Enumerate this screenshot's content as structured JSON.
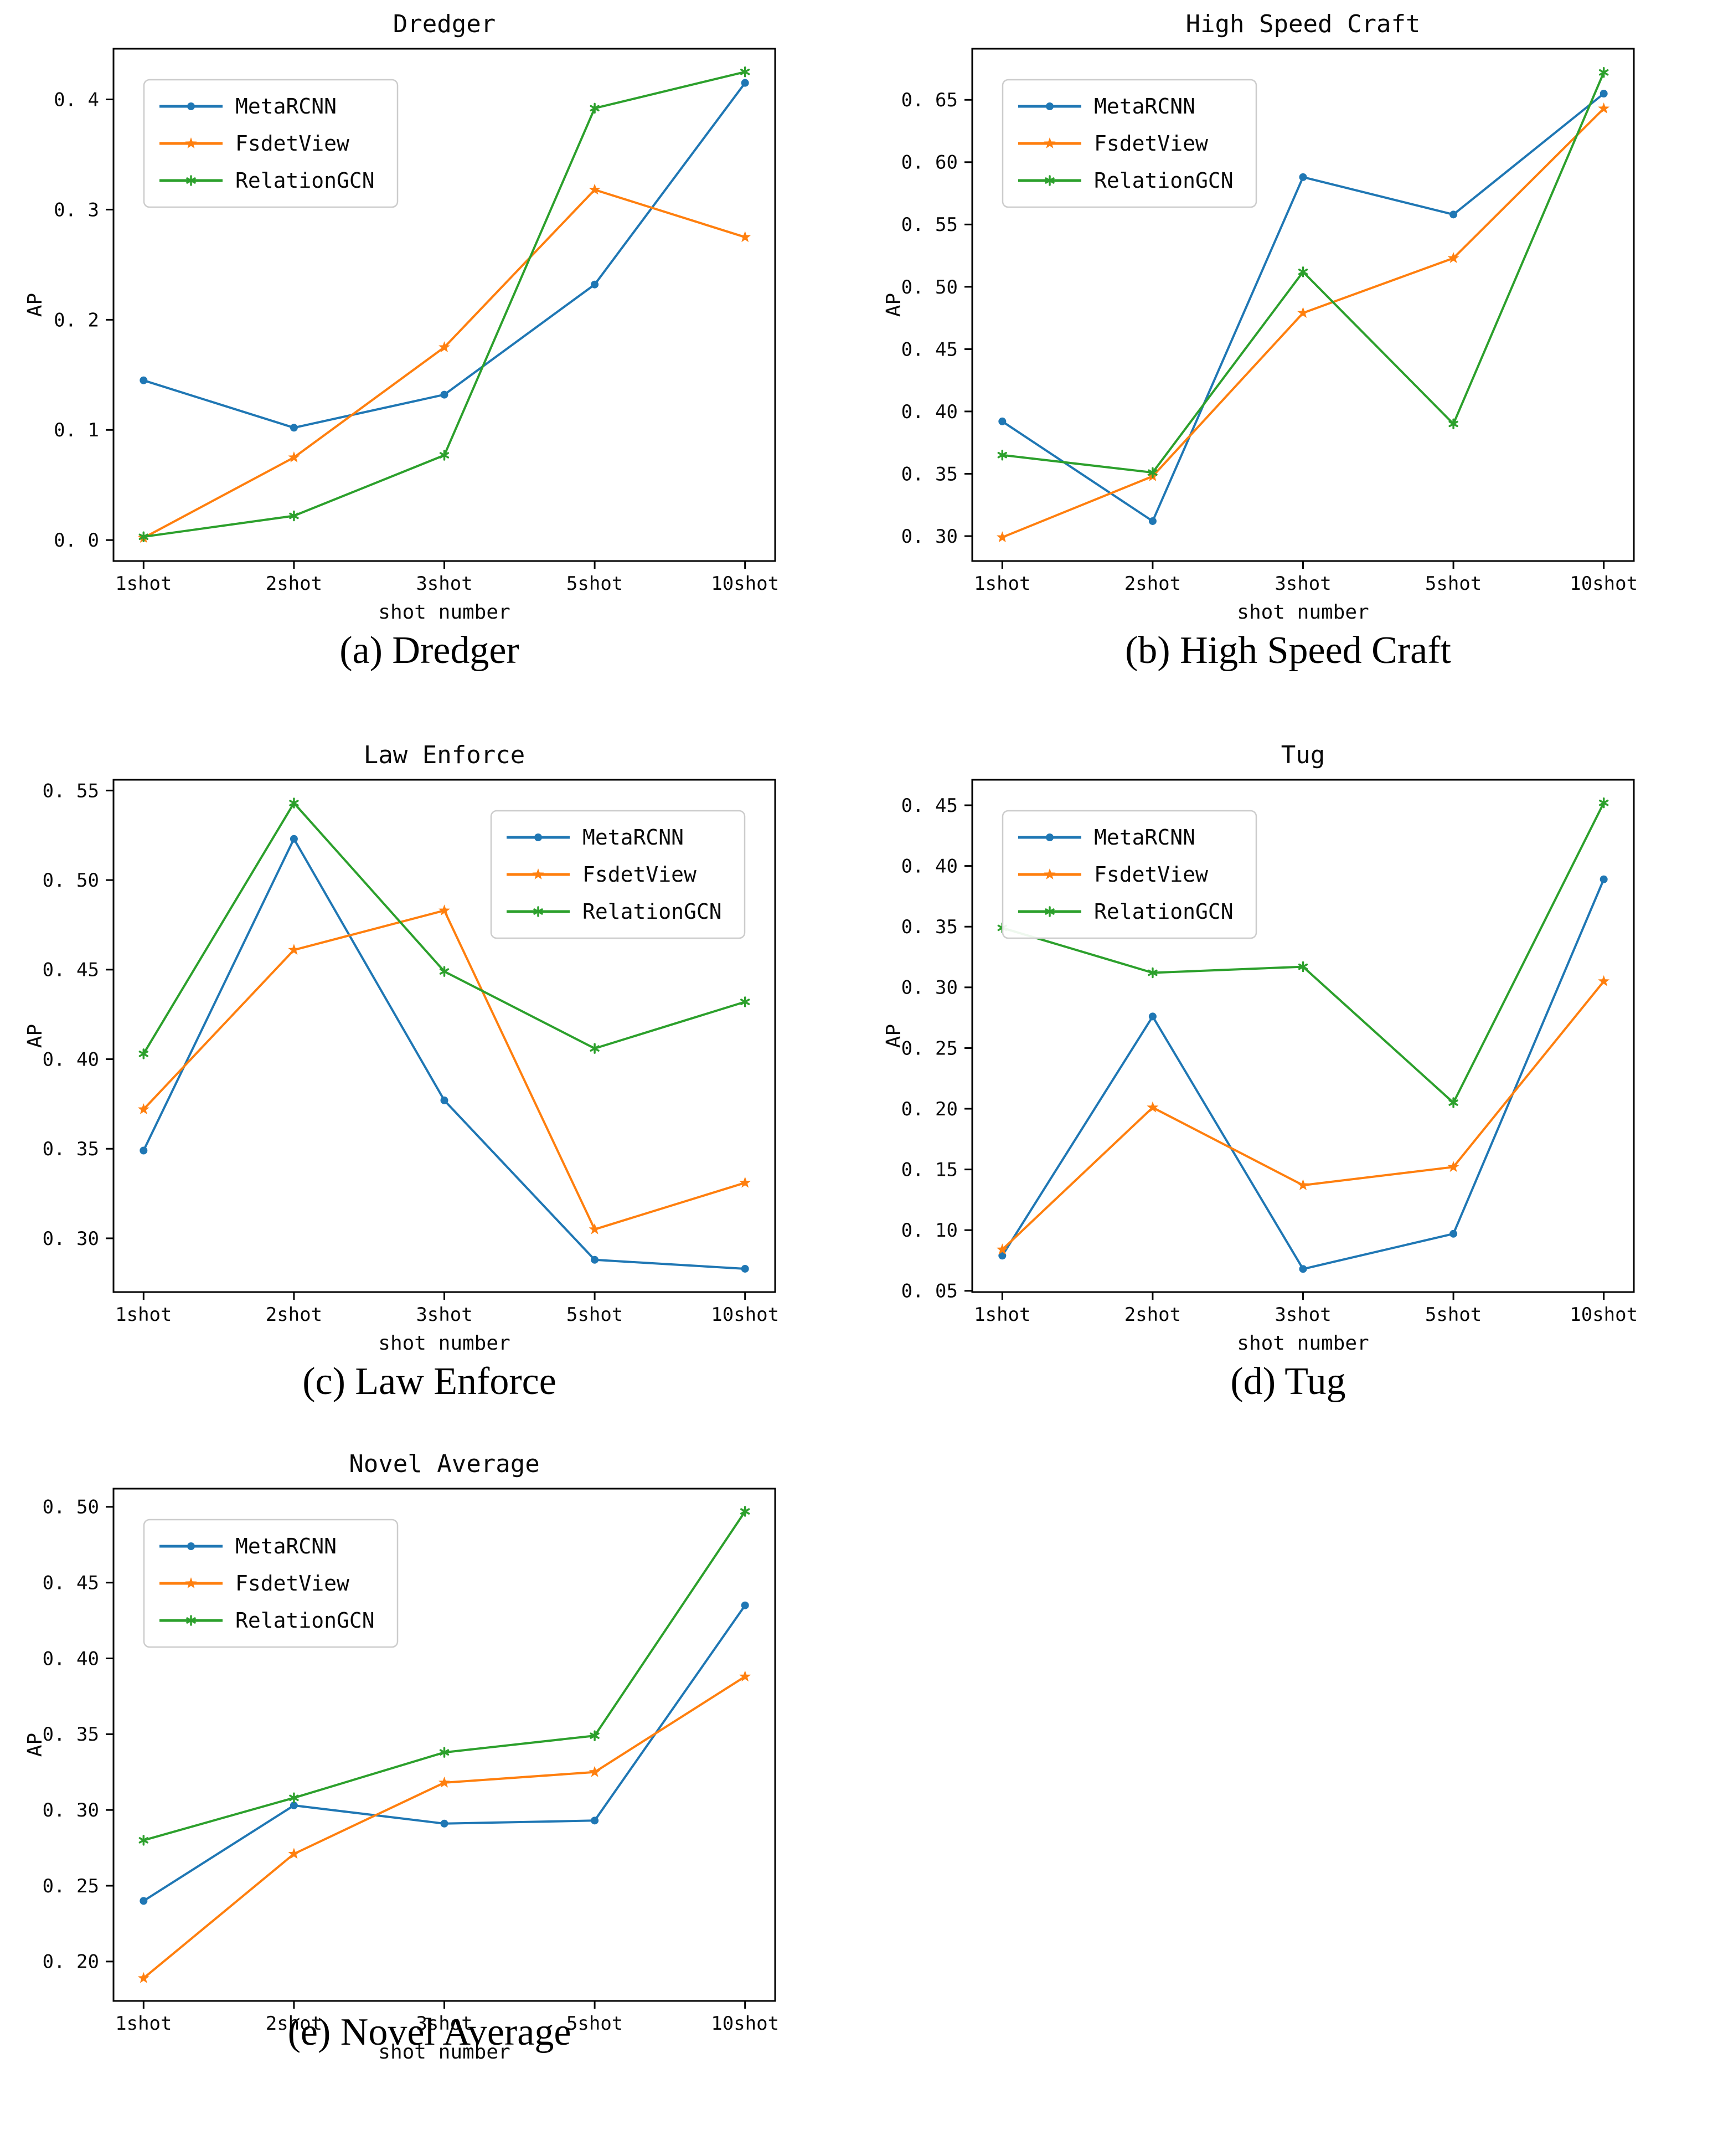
{
  "figure": {
    "xlabel": "shot number",
    "ylabel": "AP",
    "categories": [
      "1shot",
      "2shot",
      "3shot",
      "5shot",
      "10shot"
    ],
    "series_meta": [
      {
        "name": "MetaRCNN",
        "color": "#1f77b4",
        "marker": "circle-icon"
      },
      {
        "name": "FsdetView",
        "color": "#ff7f0e",
        "marker": "star-icon"
      },
      {
        "name": "RelationGCN",
        "color": "#2ca02c",
        "marker": "asterisk-icon"
      }
    ],
    "colors": {
      "axis": "#000000",
      "legend_border": "#cccccc",
      "background": "#ffffff"
    }
  },
  "chart_data": [
    {
      "type": "line",
      "title": "Dredger",
      "caption": "(a) Dredger",
      "xlabel": "shot number",
      "ylabel": "AP",
      "legend_position": "upper-left",
      "categories": [
        "1shot",
        "2shot",
        "3shot",
        "5shot",
        "10shot"
      ],
      "ylim": [
        -0.019,
        0.446
      ],
      "yticks": [
        0.0,
        0.1,
        0.2,
        0.3,
        0.4
      ],
      "ytick_labels": [
        "0. 0",
        "0. 1",
        "0. 2",
        "0. 3",
        "0. 4"
      ],
      "series": [
        {
          "name": "MetaRCNN",
          "values": [
            0.145,
            0.102,
            0.132,
            0.232,
            0.415
          ]
        },
        {
          "name": "FsdetView",
          "values": [
            0.002,
            0.075,
            0.175,
            0.318,
            0.275
          ]
        },
        {
          "name": "RelationGCN",
          "values": [
            0.003,
            0.022,
            0.077,
            0.392,
            0.425
          ]
        }
      ]
    },
    {
      "type": "line",
      "title": "High Speed Craft",
      "caption": "(b) High Speed Craft",
      "xlabel": "shot number",
      "ylabel": "AP",
      "legend_position": "upper-left",
      "categories": [
        "1shot",
        "2shot",
        "3shot",
        "5shot",
        "10shot"
      ],
      "ylim": [
        0.28,
        0.691
      ],
      "yticks": [
        0.3,
        0.35,
        0.4,
        0.45,
        0.5,
        0.55,
        0.6,
        0.65
      ],
      "ytick_labels": [
        "0. 30",
        "0. 35",
        "0. 40",
        "0. 45",
        "0. 50",
        "0. 55",
        "0. 60",
        "0. 65"
      ],
      "series": [
        {
          "name": "MetaRCNN",
          "values": [
            0.392,
            0.312,
            0.588,
            0.558,
            0.655
          ]
        },
        {
          "name": "FsdetView",
          "values": [
            0.299,
            0.348,
            0.479,
            0.523,
            0.643
          ]
        },
        {
          "name": "RelationGCN",
          "values": [
            0.365,
            0.351,
            0.512,
            0.39,
            0.672
          ]
        }
      ]
    },
    {
      "type": "line",
      "title": "Law Enforce",
      "caption": "(c) Law Enforce",
      "xlabel": "shot number",
      "ylabel": "AP",
      "legend_position": "upper-right",
      "categories": [
        "1shot",
        "2shot",
        "3shot",
        "5shot",
        "10shot"
      ],
      "ylim": [
        0.27,
        0.556
      ],
      "yticks": [
        0.3,
        0.35,
        0.4,
        0.45,
        0.5,
        0.55
      ],
      "ytick_labels": [
        "0. 30",
        "0. 35",
        "0. 40",
        "0. 45",
        "0. 50",
        "0. 55"
      ],
      "series": [
        {
          "name": "MetaRCNN",
          "values": [
            0.349,
            0.523,
            0.377,
            0.288,
            0.283
          ]
        },
        {
          "name": "FsdetView",
          "values": [
            0.372,
            0.461,
            0.483,
            0.305,
            0.331
          ]
        },
        {
          "name": "RelationGCN",
          "values": [
            0.403,
            0.543,
            0.449,
            0.406,
            0.432
          ]
        }
      ]
    },
    {
      "type": "line",
      "title": "Tug",
      "caption": "(d) Tug",
      "xlabel": "shot number",
      "ylabel": "AP",
      "legend_position": "upper-left",
      "categories": [
        "1shot",
        "2shot",
        "3shot",
        "5shot",
        "10shot"
      ],
      "ylim": [
        0.049,
        0.471
      ],
      "yticks": [
        0.05,
        0.1,
        0.15,
        0.2,
        0.25,
        0.3,
        0.35,
        0.4,
        0.45
      ],
      "ytick_labels": [
        "0. 05",
        "0. 10",
        "0. 15",
        "0. 20",
        "0. 25",
        "0. 30",
        "0. 35",
        "0. 40",
        "0. 45"
      ],
      "series": [
        {
          "name": "MetaRCNN",
          "values": [
            0.079,
            0.276,
            0.068,
            0.097,
            0.389
          ]
        },
        {
          "name": "FsdetView",
          "values": [
            0.084,
            0.201,
            0.137,
            0.152,
            0.305
          ]
        },
        {
          "name": "RelationGCN",
          "values": [
            0.349,
            0.312,
            0.317,
            0.205,
            0.452
          ]
        }
      ]
    },
    {
      "type": "line",
      "title": "Novel Average",
      "caption": "(e) Novel Average",
      "xlabel": "shot number",
      "ylabel": "AP",
      "legend_position": "upper-left",
      "categories": [
        "1shot",
        "2shot",
        "3shot",
        "5shot",
        "10shot"
      ],
      "ylim": [
        0.174,
        0.512
      ],
      "yticks": [
        0.2,
        0.25,
        0.3,
        0.35,
        0.4,
        0.45,
        0.5
      ],
      "ytick_labels": [
        "0. 20",
        "0. 25",
        "0. 30",
        "0. 35",
        "0. 40",
        "0. 45",
        "0. 50"
      ],
      "series": [
        {
          "name": "MetaRCNN",
          "values": [
            0.24,
            0.303,
            0.291,
            0.293,
            0.435
          ]
        },
        {
          "name": "FsdetView",
          "values": [
            0.189,
            0.271,
            0.318,
            0.325,
            0.388
          ]
        },
        {
          "name": "RelationGCN",
          "values": [
            0.28,
            0.308,
            0.338,
            0.349,
            0.497
          ]
        }
      ]
    }
  ]
}
